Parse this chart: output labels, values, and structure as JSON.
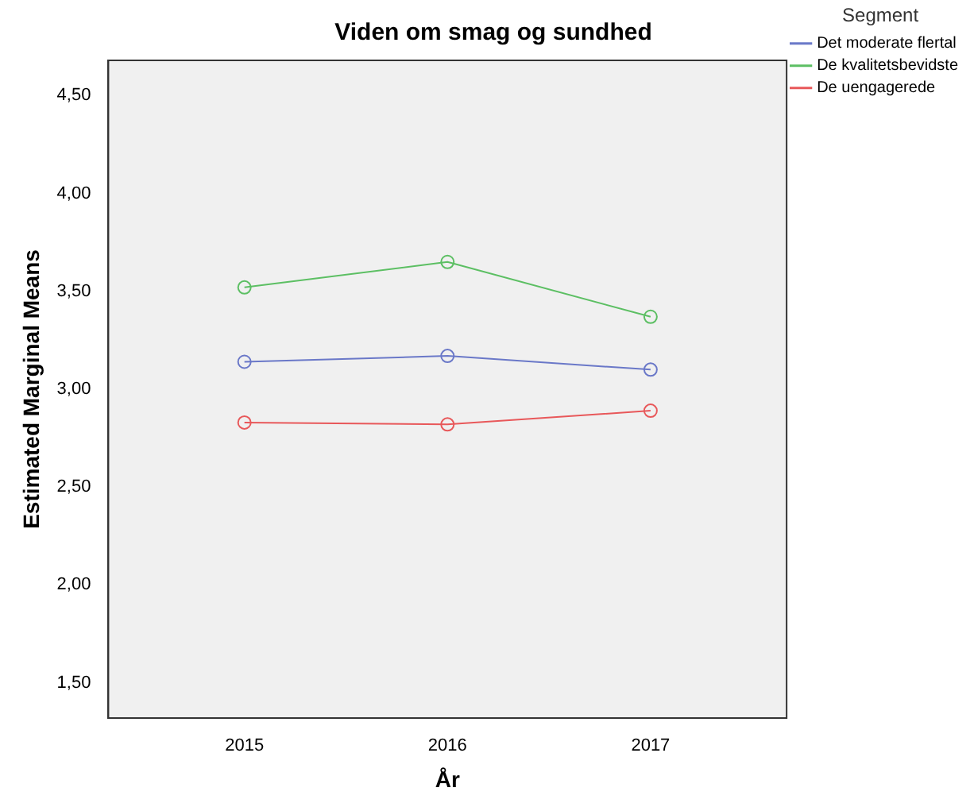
{
  "chart_data": {
    "type": "line",
    "title": "Viden om smag og sundhed",
    "xlabel": "År",
    "ylabel": "Estimated Marginal Means",
    "legend_title": "Segment",
    "legend": "right",
    "marker": "circle",
    "line_style": "solid",
    "grid": false,
    "x": [
      2015,
      2016,
      2017
    ],
    "xlim": [
      2014.33,
      2017.67
    ],
    "xticks": [
      2015,
      2016,
      2017
    ],
    "ylim": [
      1.32,
      4.68
    ],
    "yticks": [
      {
        "value": 1.5,
        "label": "1,50"
      },
      {
        "value": 2,
        "label": "2,00"
      },
      {
        "value": 2.5,
        "label": "2,50"
      },
      {
        "value": 3,
        "label": "3,00"
      },
      {
        "value": 3.5,
        "label": "3,50"
      },
      {
        "value": 4,
        "label": "4,00"
      },
      {
        "value": 4.5,
        "label": "4,50"
      }
    ],
    "series": [
      {
        "name": "Det moderate flertal",
        "color": "#6a78c8",
        "values": [
          3.14,
          3.17,
          3.1
        ]
      },
      {
        "name": "De kvalitetsbevidste",
        "color": "#5cbf63",
        "values": [
          3.52,
          3.65,
          3.37
        ]
      },
      {
        "name": "De uengagerede",
        "color": "#e8585a",
        "values": [
          2.83,
          2.82,
          2.89
        ]
      }
    ]
  }
}
